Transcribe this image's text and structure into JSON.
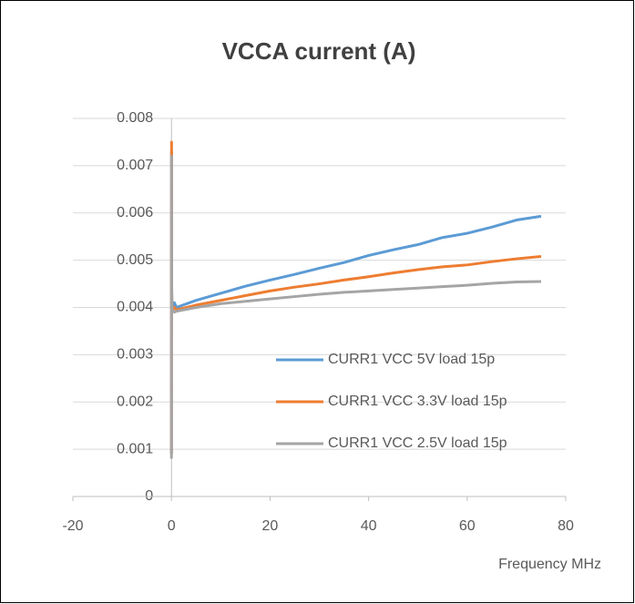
{
  "chart_data": {
    "type": "line",
    "title": "VCCA current (A)",
    "x_label": "Frequency MHz",
    "x": [
      0,
      0.02,
      0.05,
      0.1,
      0.3,
      0.6,
      1,
      5,
      10,
      15,
      20,
      25,
      30,
      35,
      40,
      45,
      50,
      55,
      60,
      65,
      70,
      75
    ],
    "series": [
      {
        "name": "CURR1 VCC 5V load 15p",
        "color": "#5b9bd5",
        "values": [
          0.0009,
          0.0073,
          0.0045,
          0.0041,
          0.004,
          0.0041,
          0.004,
          0.00415,
          0.0043,
          0.00445,
          0.00458,
          0.0047,
          0.00483,
          0.00495,
          0.0051,
          0.00522,
          0.00533,
          0.00548,
          0.00557,
          0.0057,
          0.00585,
          0.00593
        ]
      },
      {
        "name": "CURR1 VCC 3.3V load 15p",
        "color": "#ed7d31",
        "values": [
          0.0009,
          0.0075,
          0.0044,
          0.004,
          0.00395,
          0.004,
          0.00395,
          0.00405,
          0.00415,
          0.00425,
          0.00435,
          0.00443,
          0.0045,
          0.00458,
          0.00465,
          0.00473,
          0.0048,
          0.00486,
          0.0049,
          0.00497,
          0.00503,
          0.00508
        ]
      },
      {
        "name": "CURR1 VCC 2.5V load 15p",
        "color": "#a5a5a5",
        "values": [
          0.0008,
          0.0072,
          0.0043,
          0.004,
          0.00393,
          0.0039,
          0.00392,
          0.004,
          0.00408,
          0.00413,
          0.00418,
          0.00423,
          0.00428,
          0.00432,
          0.00435,
          0.00438,
          0.00441,
          0.00444,
          0.00447,
          0.00451,
          0.00454,
          0.00455
        ]
      }
    ],
    "xlim": [
      -20,
      80
    ],
    "xticks": [
      -20,
      0,
      20,
      40,
      60,
      80
    ],
    "ylim": [
      0,
      0.008
    ],
    "yticks": [
      0,
      0.001,
      0.002,
      0.003,
      0.004,
      0.005,
      0.006,
      0.007,
      0.008
    ],
    "grid": true,
    "legend": "right"
  }
}
